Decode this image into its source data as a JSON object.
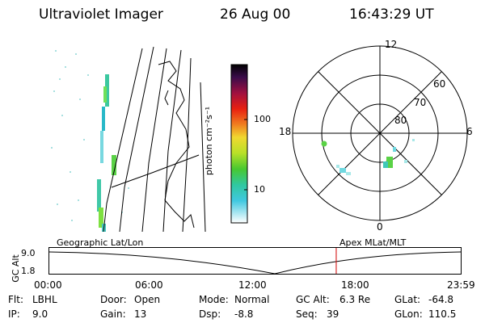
{
  "header": {
    "instrument": "Ultraviolet Imager",
    "date": "26 Aug 00",
    "time": "16:43:29 UT"
  },
  "colorbar": {
    "label": "photon cm⁻²s⁻¹",
    "ticks": [
      "100",
      "10"
    ]
  },
  "polar": {
    "mlt_labels": [
      "12",
      "18",
      "6",
      "0"
    ],
    "lat_labels": [
      "60",
      "70",
      "80"
    ]
  },
  "timeline": {
    "left_title": "Geographic Lat/Lon",
    "right_title": "Apex MLat/MLT",
    "y_axis_label": "GC Alt",
    "y_ticks": [
      "9.0",
      "1.8"
    ],
    "x_ticks": [
      "00:00",
      "06:00",
      "12:00",
      "18:00",
      "23:59"
    ],
    "marker_time": "16:43:29",
    "marker_color": "#d00000"
  },
  "info": {
    "rows": [
      [
        {
          "label": "Flt:",
          "value": "LBHL"
        },
        {
          "label": "Door:",
          "value": "Open"
        },
        {
          "label": "Mode:",
          "value": "Normal"
        },
        {
          "label": "GC Alt:",
          "value": "6.3 Re"
        },
        {
          "label": "GLat:",
          "value": "-64.8"
        }
      ],
      [
        {
          "label": "IP:",
          "value": "9.0"
        },
        {
          "label": "Gain:",
          "value": "13"
        },
        {
          "label": "Dsp:",
          "value": "-8.8"
        },
        {
          "label": "Seq:",
          "value": "39"
        },
        {
          "label": "GLon:",
          "value": "110.5"
        }
      ]
    ]
  }
}
